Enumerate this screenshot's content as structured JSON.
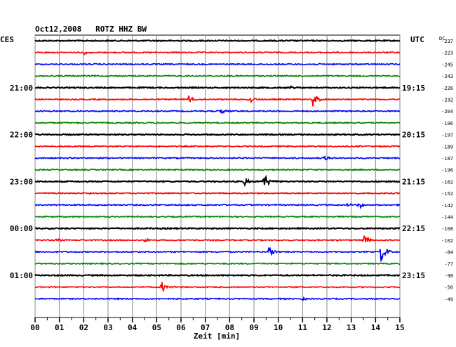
{
  "chart_data": {
    "type": "line",
    "title": "Oct12,2008   ROTZ HHZ BW",
    "left_tz": "CES",
    "right_tz": "UTC",
    "right_header": "DC",
    "xlabel": "Zeit [min]",
    "x_ticks": [
      "00",
      "01",
      "02",
      "03",
      "04",
      "05",
      "06",
      "07",
      "08",
      "09",
      "10",
      "11",
      "12",
      "13",
      "14",
      "15"
    ],
    "xlim": [
      0,
      15
    ],
    "grid": true,
    "left_time_labels": [
      {
        "trace": 4,
        "text": "21:00"
      },
      {
        "trace": 8,
        "text": "22:00"
      },
      {
        "trace": 12,
        "text": "23:00"
      },
      {
        "trace": 16,
        "text": "00:00"
      },
      {
        "trace": 20,
        "text": "01:00"
      }
    ],
    "right_time_labels": [
      {
        "trace": 4,
        "text": "19:15"
      },
      {
        "trace": 8,
        "text": "20:15"
      },
      {
        "trace": 12,
        "text": "21:15"
      },
      {
        "trace": 16,
        "text": "22:15"
      },
      {
        "trace": 20,
        "text": "23:15"
      }
    ],
    "dc_offsets": [
      "-237",
      "-223",
      "-245",
      "-243",
      "-226",
      "-232",
      "-204",
      "-196",
      "-197",
      "-189",
      "-187",
      "-196",
      "-162",
      "-152",
      "-142",
      "-144",
      "-108",
      "-102",
      "-84",
      "-77",
      "-98",
      "-50",
      "-49"
    ],
    "trace_colors": [
      "#000000",
      "#ff0000",
      "#0000ff",
      "#008000"
    ],
    "events": [
      {
        "trace": 1,
        "t": 2.0,
        "amp": 3
      },
      {
        "trace": 5,
        "t": 6.3,
        "amp": 7
      },
      {
        "trace": 5,
        "t": 8.8,
        "amp": 6
      },
      {
        "trace": 5,
        "t": 11.4,
        "amp": 12
      },
      {
        "trace": 6,
        "t": 7.6,
        "amp": 5
      },
      {
        "trace": 4,
        "t": 10.5,
        "amp": 3
      },
      {
        "trace": 10,
        "t": 11.9,
        "amp": 4
      },
      {
        "trace": 12,
        "t": 8.6,
        "amp": 7
      },
      {
        "trace": 12,
        "t": 9.4,
        "amp": 12
      },
      {
        "trace": 14,
        "t": 13.3,
        "amp": 7
      },
      {
        "trace": 14,
        "t": 12.8,
        "amp": 3
      },
      {
        "trace": 17,
        "t": 0.8,
        "amp": 4
      },
      {
        "trace": 17,
        "t": 4.5,
        "amp": 4
      },
      {
        "trace": 17,
        "t": 13.5,
        "amp": 8
      },
      {
        "trace": 18,
        "t": 9.6,
        "amp": 9
      },
      {
        "trace": 18,
        "t": 14.2,
        "amp": 18
      },
      {
        "trace": 21,
        "t": 5.2,
        "amp": 10
      },
      {
        "trace": 22,
        "t": 11.0,
        "amp": 2
      }
    ]
  }
}
